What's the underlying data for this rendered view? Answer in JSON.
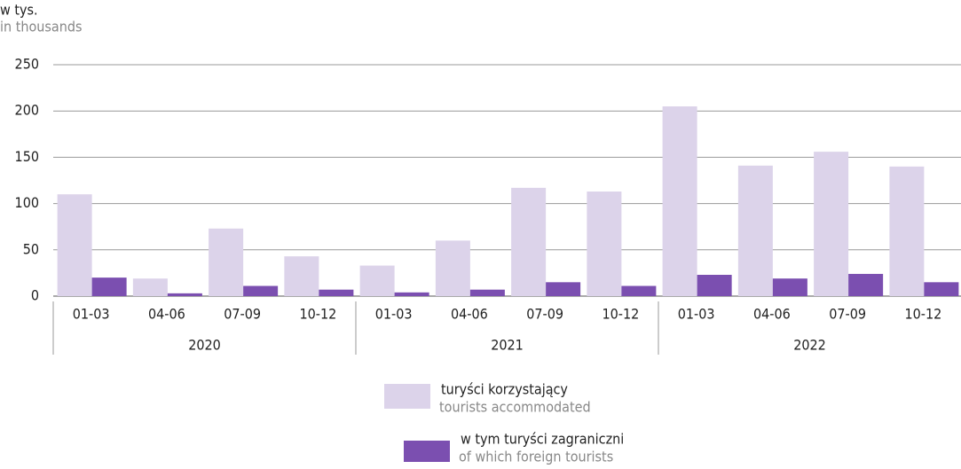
{
  "chart_data": {
    "type": "bar",
    "y_label": "w tys.",
    "y_label_en": "in thousands",
    "categories": [
      "01-03",
      "04-06",
      "07-09",
      "10-12",
      "01-03",
      "04-06",
      "07-09",
      "10-12",
      "01-03",
      "04-06",
      "07-09",
      "10-12"
    ],
    "groups": [
      "2020",
      "2021",
      "2022"
    ],
    "series": [
      {
        "name": "turyści korzystający",
        "name_en": "tourists accommodated",
        "color": "#dcd3ea",
        "values": [
          110,
          19,
          73,
          43,
          33,
          60,
          117,
          113,
          205,
          141,
          156,
          140
        ]
      },
      {
        "name": "w tym turyści zagraniczni",
        "name_en": "of which foreign tourists",
        "color": "#7b4fb0",
        "values": [
          20,
          3,
          11,
          7,
          4,
          7,
          15,
          11,
          23,
          19,
          24,
          15
        ]
      }
    ],
    "ylim": [
      0,
      250
    ],
    "yticks": [
      0,
      50,
      100,
      150,
      200,
      250
    ],
    "grid": true
  }
}
